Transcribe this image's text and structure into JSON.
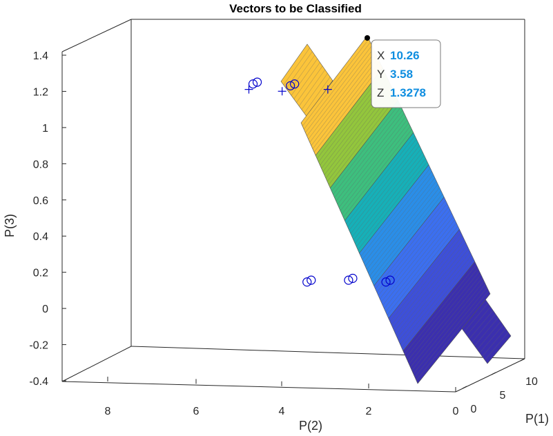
{
  "chart_data": {
    "type": "scatter",
    "title": "Vectors to be Classified",
    "xlabel": "P(1)",
    "ylabel": "P(2)",
    "zlabel": "P(3)",
    "p1_ticks": [
      "0",
      "5",
      "10"
    ],
    "p2_ticks": [
      "8",
      "6",
      "4",
      "2",
      "0"
    ],
    "p3_ticks": [
      "1.4",
      "1.2",
      "1",
      "0.8",
      "0.6",
      "0.4",
      "0.2",
      "0",
      "-0.2",
      "-0.4"
    ],
    "zlim": [
      -0.4,
      1.4
    ],
    "series": [
      {
        "marker": "plus",
        "color": "#0000cc",
        "points": [
          {
            "p2": 6.0,
            "p3": 1.09
          },
          {
            "p2": 5.2,
            "p3": 1.08
          },
          {
            "p2": 4.1,
            "p3": 1.09
          },
          {
            "p2": 1.9,
            "p3": 1.08
          }
        ]
      },
      {
        "marker": "circle",
        "color": "#0000cc",
        "points": [
          {
            "p2": 5.9,
            "p3": 1.12
          },
          {
            "p2": 5.8,
            "p3": 1.13
          },
          {
            "p2": 5.0,
            "p3": 1.11
          },
          {
            "p2": 4.9,
            "p3": 1.12
          },
          {
            "p2": 4.6,
            "p3": 0.03
          },
          {
            "p2": 4.5,
            "p3": 0.04
          },
          {
            "p2": 3.6,
            "p3": 0.04
          },
          {
            "p2": 3.5,
            "p3": 0.05
          },
          {
            "p2": 2.7,
            "p3": 0.03
          },
          {
            "p2": 2.6,
            "p3": 0.04
          }
        ]
      }
    ],
    "surface_colors": [
      "#fbc43a",
      "#93c63c",
      "#3dbf7e",
      "#16b0b8",
      "#2a8ee8",
      "#3b6ff0",
      "#3d4fd9",
      "#3b2fae"
    ],
    "datatip": {
      "x_key": "X",
      "x_val": "10.26",
      "y_key": "Y",
      "y_val": "3.58",
      "z_key": "Z",
      "z_val": "1.3278"
    }
  }
}
